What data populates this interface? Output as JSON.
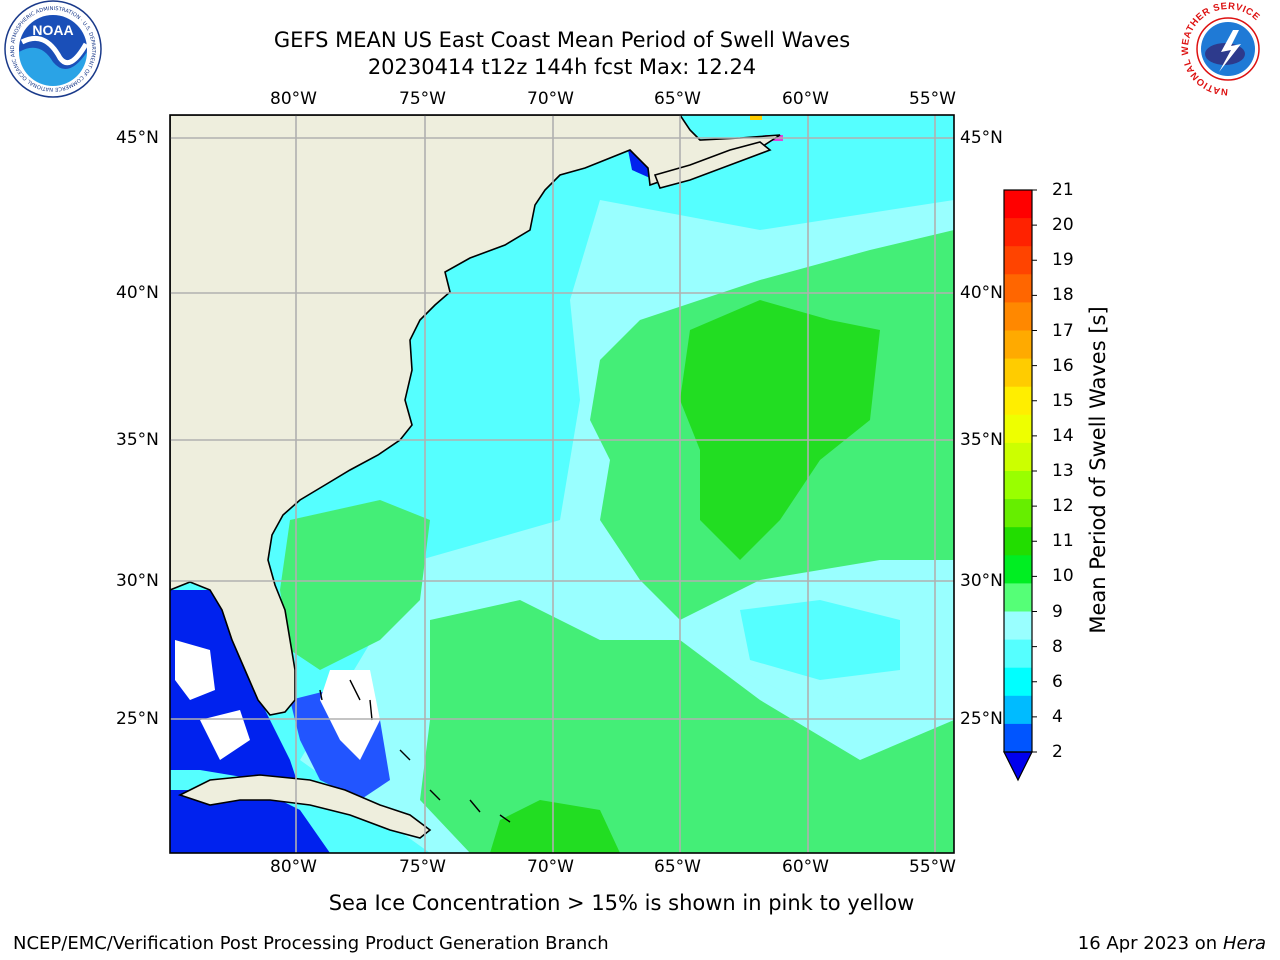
{
  "header": {
    "title_line1": "GEFS MEAN US East Coast Mean Period of Swell Waves",
    "title_line2": "20230414 t12z 144h fcst   Max: 12.24"
  },
  "logos": {
    "left": "NOAA",
    "left_ring_text": "NATIONAL OCEANIC AND ATMOSPHERIC ADMINISTRATION · U.S. DEPARTMENT OF COMMERCE",
    "right_ring_text": "NATIONAL WEATHER SERVICE"
  },
  "map": {
    "lon_labels": [
      "80°W",
      "75°W",
      "70°W",
      "65°W",
      "60°W",
      "55°W"
    ],
    "lat_labels": [
      "45°N",
      "40°N",
      "35°N",
      "30°N",
      "25°N"
    ],
    "lon_range": [
      -85,
      -54
    ],
    "lat_range": [
      20.5,
      46
    ],
    "colors": {
      "land": "#eeeedd",
      "grid": "#b0b0b0",
      "ocean_cyan": "#55ffff",
      "ocean_light": "#99ffff",
      "ocean_green": "#44ee77",
      "ocean_bright_green": "#22dd22",
      "low_blue": "#0022ee",
      "coast": "#000000"
    }
  },
  "colorbar": {
    "label": "Mean Period of Swell Waves [s]",
    "ticks": [
      "21",
      "20",
      "19",
      "18",
      "17",
      "16",
      "15",
      "14",
      "13",
      "12",
      "11",
      "10",
      "9",
      "8",
      "6",
      "4",
      "2"
    ],
    "colors_top_to_bottom": [
      "#ff0000",
      "#ff2200",
      "#ff4400",
      "#ff6600",
      "#ff8800",
      "#ffaa00",
      "#ffcc00",
      "#ffee00",
      "#eeff00",
      "#ccff00",
      "#99ff00",
      "#66ee00",
      "#22dd00",
      "#00ee22",
      "#55ff77",
      "#99ffff",
      "#55ffff",
      "#00ffff",
      "#00bbff",
      "#0055ff"
    ],
    "under_color": "#0000ee"
  },
  "footer": {
    "ice_note": "Sea Ice Concentration > 15% is shown in pink to yellow",
    "credit": "NCEP/EMC/Verification Post Processing Product Generation Branch",
    "date": "16 Apr 2023 on ",
    "machine": "Hera"
  }
}
